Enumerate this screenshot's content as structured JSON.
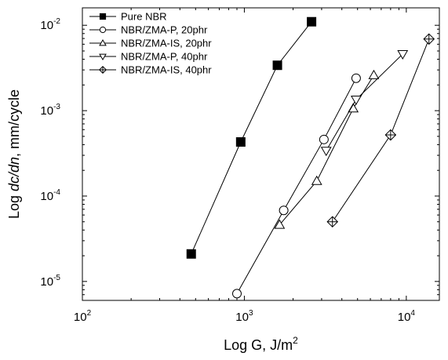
{
  "chart_data": {
    "type": "scatter",
    "x_scale": "log",
    "y_scale": "log",
    "xlim": [
      100,
      16000
    ],
    "ylim": [
      6e-06,
      0.016
    ],
    "xlabel": {
      "prefix": "Log G, J/m",
      "sup": "2"
    },
    "ylabel": {
      "prefix": "Log ",
      "italic": "dc/dn",
      "suffix": ", mm/cycle"
    },
    "x_ticks": [
      {
        "value": 100,
        "base": "10",
        "exp": "2"
      },
      {
        "value": 1000,
        "base": "10",
        "exp": "3"
      },
      {
        "value": 10000,
        "base": "10",
        "exp": "4"
      }
    ],
    "y_ticks": [
      {
        "value": 1e-05,
        "base": "10",
        "exp": "-5"
      },
      {
        "value": 0.0001,
        "base": "10",
        "exp": "-4"
      },
      {
        "value": 0.001,
        "base": "10",
        "exp": "-3"
      },
      {
        "value": 0.01,
        "base": "10",
        "exp": "-2"
      }
    ],
    "legend_position": "top-left",
    "series": [
      {
        "name": "Pure NBR",
        "marker": "square-filled",
        "x": [
          470,
          950,
          1600,
          2600
        ],
        "y": [
          2.1e-05,
          0.00043,
          0.0034,
          0.011
        ]
      },
      {
        "name": "NBR/ZMA-P, 20phr",
        "marker": "circle-open",
        "x": [
          900,
          1750,
          3100,
          4900
        ],
        "y": [
          7.2e-06,
          6.8e-05,
          0.00046,
          0.0024
        ]
      },
      {
        "name": "NBR/ZMA-IS, 20phr",
        "marker": "triangle-up-open",
        "x": [
          1650,
          2800,
          4700,
          6300
        ],
        "y": [
          4.6e-05,
          0.00015,
          0.00106,
          0.0026
        ]
      },
      {
        "name": "NBR/ZMA-P, 40phr",
        "marker": "triangle-down-open",
        "x": [
          3200,
          4900,
          9500
        ],
        "y": [
          0.00034,
          0.00135,
          0.0046
        ]
      },
      {
        "name": "NBR/ZMA-IS, 40phr",
        "marker": "diamond-crossed",
        "x": [
          3500,
          8000,
          13800
        ],
        "y": [
          5e-05,
          0.00052,
          0.0069
        ]
      }
    ]
  }
}
